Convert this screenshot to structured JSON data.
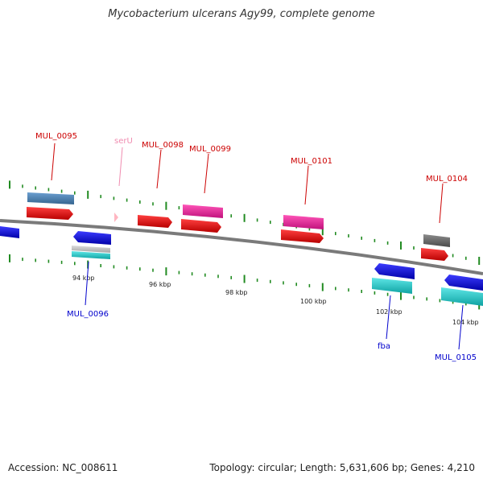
{
  "title": "Mycobacterium ulcerans Agy99, complete genome",
  "footer": {
    "accession": "Accession: NC_008611",
    "summary": "Topology: circular; Length: 5,631,606 bp; Genes: 4,210"
  },
  "colors": {
    "backbone": "#7f7f7f",
    "forward_label": "#cc0000",
    "reverse_label": "#0000cc",
    "trna_label": "#f08cb0",
    "tick": "#228b22",
    "cds": "#ff0000",
    "reverse_cds": "#0000ff",
    "steelblue": "#4682b4",
    "magenta": "#e8259b",
    "cyan": "#18c8c8",
    "gray": "#666666",
    "lightgray": "#c0c0c0",
    "pink": "#ffb6c1"
  },
  "scale_labels": [
    "94 kbp",
    "96 kbp",
    "98 kbp",
    "100 kbp",
    "102 kbp",
    "104 kbp"
  ],
  "gene_labels": {
    "mul_0095": "MUL_0095",
    "seru": "serU",
    "mul_0098": "MUL_0098",
    "mul_0099": "MUL_0099",
    "mul_0101": "MUL_0101",
    "mul_0104": "MUL_0104",
    "mul_0096": "MUL_0096",
    "fba": "fba",
    "mul_0105": "MUL_0105"
  }
}
